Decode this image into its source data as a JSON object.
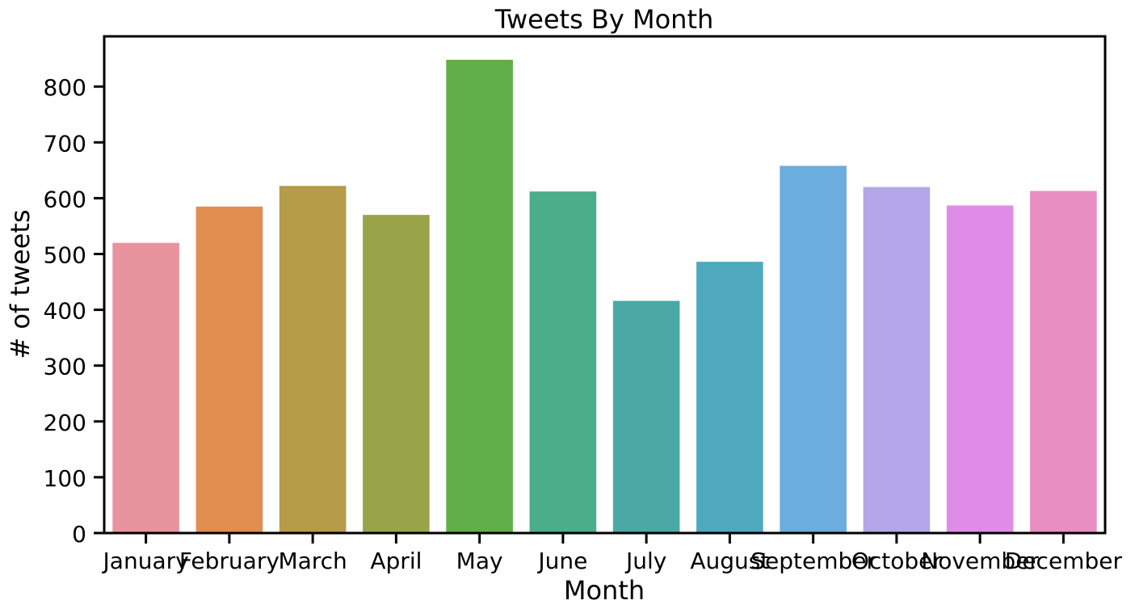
{
  "chart_data": {
    "type": "bar",
    "title": "Tweets By Month",
    "xlabel": "Month",
    "ylabel": "# of tweets",
    "categories": [
      "January",
      "February",
      "March",
      "April",
      "May",
      "June",
      "July",
      "August",
      "September",
      "October",
      "November",
      "December"
    ],
    "values": [
      520,
      585,
      622,
      570,
      848,
      612,
      416,
      486,
      658,
      620,
      587,
      613
    ],
    "colors": [
      "#e8949f",
      "#df8e50",
      "#b69b48",
      "#98a447",
      "#61af49",
      "#4aae8a",
      "#4aa9a5",
      "#4ea8be",
      "#6badde",
      "#b4a6e9",
      "#df8ce8",
      "#e78fc3"
    ],
    "yticks": [
      0,
      100,
      200,
      300,
      400,
      500,
      600,
      700,
      800
    ],
    "ylim": [
      0,
      890
    ],
    "grid": false,
    "legend": "none"
  }
}
